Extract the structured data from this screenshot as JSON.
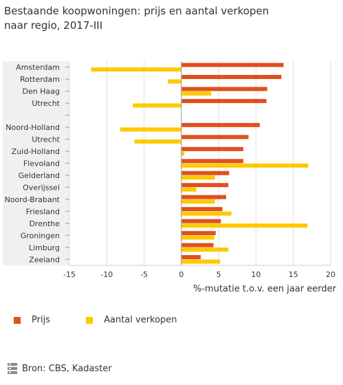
{
  "title_line1": "Bestaande koopwoningen: prijs en aantal verkopen",
  "title_line2": "naar regio, 2017-III",
  "source_text": "Bron: CBS, Kadaster",
  "source_icon": "database-icon",
  "colors": {
    "prijs": "#e0501c",
    "verkopen": "#fcca00",
    "panel": "#f0f0f0",
    "grid": "#dddddd",
    "zero": "#999999"
  },
  "chart_data": {
    "type": "bar",
    "orientation": "horizontal",
    "xlabel": "%-mutatie t.o.v. een jaar eerder",
    "ylabel": "",
    "xlim": [
      -15,
      20
    ],
    "xticks": [
      -15,
      -10,
      -5,
      0,
      5,
      10,
      15,
      20
    ],
    "grid": true,
    "legend_position": "bottom-left",
    "categories": [
      "Amsterdam",
      "Rotterdam",
      "Den Haag",
      "Utrecht",
      "",
      "Noord-Holland",
      "Utrecht",
      "Zuid-Holland",
      "Flevoland",
      "Gelderland",
      "Overijssel",
      "Noord-Brabant",
      "Friesland",
      "Drenthe",
      "Groningen",
      "Limburg",
      "Zeeland"
    ],
    "series": [
      {
        "name": "Prijs",
        "values": [
          13.7,
          13.4,
          11.5,
          11.4,
          null,
          10.5,
          9.0,
          8.3,
          8.3,
          6.4,
          6.3,
          6.0,
          5.5,
          5.3,
          4.6,
          4.3,
          2.6
        ]
      },
      {
        "name": "Aantal verkopen",
        "values": [
          -12.1,
          -1.8,
          4.0,
          -6.5,
          null,
          -8.2,
          -6.3,
          0.4,
          17.0,
          4.5,
          2.0,
          4.5,
          6.7,
          16.9,
          4.4,
          6.3,
          5.2
        ]
      }
    ]
  }
}
